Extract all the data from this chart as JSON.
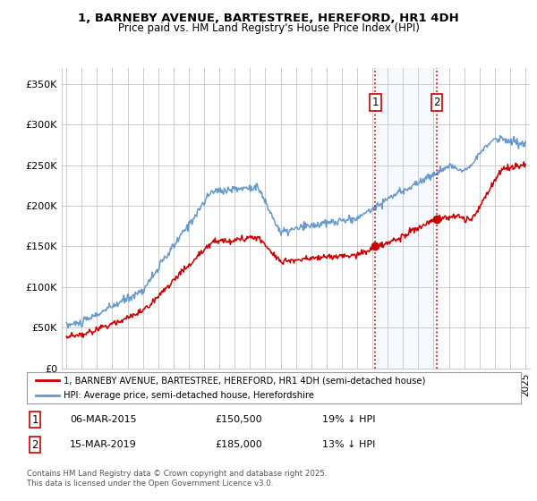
{
  "title_line1": "1, BARNEBY AVENUE, BARTESTREE, HEREFORD, HR1 4DH",
  "title_line2": "Price paid vs. HM Land Registry's House Price Index (HPI)",
  "ylim": [
    0,
    370000
  ],
  "yticks": [
    0,
    50000,
    100000,
    150000,
    200000,
    250000,
    300000,
    350000
  ],
  "ytick_labels": [
    "£0",
    "£50K",
    "£100K",
    "£150K",
    "£200K",
    "£250K",
    "£300K",
    "£350K"
  ],
  "xlim_start": 1994.7,
  "xlim_end": 2025.3,
  "marker1_x": 2015.18,
  "marker2_x": 2019.21,
  "marker1_y_red": 150500,
  "marker2_y_red": 185000,
  "marker1_label": "1",
  "marker2_label": "2",
  "marker1_price": 150500,
  "marker2_price": 185000,
  "transaction1_date": "06-MAR-2015",
  "transaction2_date": "15-MAR-2019",
  "transaction1_pct": "19% ↓ HPI",
  "transaction2_pct": "13% ↓ HPI",
  "legend_label_red": "1, BARNEBY AVENUE, BARTESTREE, HEREFORD, HR1 4DH (semi-detached house)",
  "legend_label_blue": "HPI: Average price, semi-detached house, Herefordshire",
  "footer": "Contains HM Land Registry data © Crown copyright and database right 2025.\nThis data is licensed under the Open Government Licence v3.0.",
  "red_color": "#cc0000",
  "blue_color": "#6699cc",
  "shade_color": "#ddeeff",
  "grid_color": "#cccccc",
  "background_color": "#ffffff"
}
